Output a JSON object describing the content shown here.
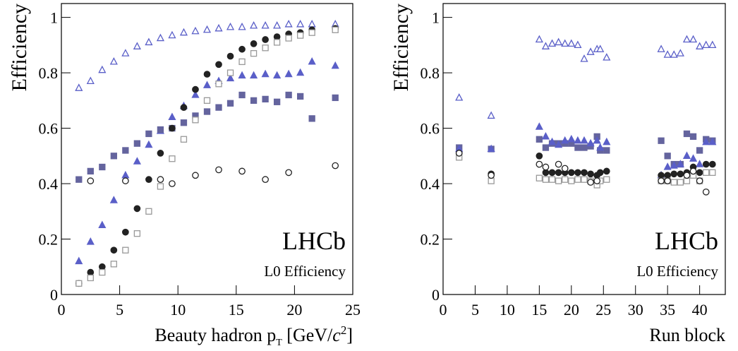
{
  "chart_data": [
    {
      "type": "scatter",
      "y_label": "Efficiency",
      "x_label": [
        "Beauty hadron p",
        "T",
        " [GeV/",
        "c",
        "2",
        "]"
      ],
      "annotations": [
        "LHCb",
        "L0 Efficiency"
      ],
      "xlim": [
        0,
        25
      ],
      "ylim": [
        0,
        1.05
      ],
      "xticks": [
        0,
        5,
        10,
        15,
        20,
        25
      ],
      "yticks": [
        0,
        0.2,
        0.4,
        0.6,
        0.8,
        1
      ],
      "x": [
        1.5,
        2.5,
        3.5,
        4.5,
        5.5,
        6.5,
        7.5,
        8.5,
        9.5,
        10.5,
        11.5,
        12.5,
        13.5,
        14.5,
        15.5,
        16.5,
        17.5,
        18.5,
        19.5,
        20.5,
        21.5,
        23.5
      ],
      "series": [
        {
          "marker": "triangle-open",
          "color": "#5a5fc8",
          "values": [
            0.745,
            0.77,
            0.81,
            0.84,
            0.87,
            0.895,
            0.91,
            0.925,
            0.935,
            0.945,
            0.95,
            0.955,
            0.96,
            0.965,
            0.965,
            0.97,
            0.97,
            0.97,
            0.975,
            0.975,
            0.975,
            0.975
          ]
        },
        {
          "marker": "triangle",
          "color": "#5a5fc8",
          "values": [
            0.12,
            0.19,
            0.25,
            0.34,
            0.43,
            0.48,
            0.54,
            0.59,
            0.64,
            0.68,
            0.72,
            0.755,
            0.77,
            0.78,
            0.79,
            0.79,
            0.795,
            0.79,
            0.795,
            0.8,
            0.84,
            0.825
          ]
        },
        {
          "marker": "square",
          "color": "#64649e",
          "values": [
            0.415,
            0.445,
            0.46,
            0.5,
            0.52,
            0.545,
            0.58,
            0.595,
            0.6,
            0.62,
            0.645,
            0.66,
            0.675,
            0.69,
            0.72,
            0.7,
            0.705,
            0.695,
            0.72,
            0.715,
            0.635,
            0.71
          ]
        },
        {
          "marker": "circle",
          "color": "#222222",
          "values": [
            0.04,
            0.08,
            0.1,
            0.16,
            0.225,
            0.31,
            0.415,
            0.51,
            0.6,
            0.675,
            0.74,
            0.795,
            0.83,
            0.86,
            0.885,
            0.905,
            0.92,
            0.93,
            0.94,
            0.945,
            0.955,
            0.96
          ]
        },
        {
          "marker": "square-open",
          "color": "#999999",
          "values": [
            0.04,
            0.06,
            0.08,
            0.11,
            0.16,
            0.22,
            0.3,
            0.39,
            0.49,
            0.56,
            0.63,
            0.7,
            0.76,
            0.8,
            0.84,
            0.87,
            0.89,
            0.91,
            0.925,
            0.935,
            0.945,
            0.955
          ]
        },
        {
          "marker": "circle-open",
          "color": "#222222",
          "values": [
            null,
            0.41,
            null,
            null,
            0.41,
            null,
            null,
            0.415,
            0.4,
            null,
            0.43,
            null,
            0.45,
            null,
            0.445,
            null,
            0.415,
            null,
            0.44,
            null,
            null,
            0.465
          ]
        }
      ]
    },
    {
      "type": "scatter",
      "y_label": "Efficiency",
      "x_label": [
        "Run block"
      ],
      "annotations": [
        "LHCb",
        "L0 Efficiency"
      ],
      "xlim": [
        0,
        44
      ],
      "ylim": [
        0,
        1.05
      ],
      "xticks": [
        0,
        5,
        10,
        15,
        20,
        25,
        30,
        35,
        40
      ],
      "yticks": [
        0,
        0.2,
        0.4,
        0.6,
        0.8,
        1
      ],
      "x": [
        2.5,
        7.5,
        15,
        16,
        17,
        18,
        19,
        20,
        21,
        22,
        23,
        24,
        24.5,
        25.5,
        34,
        35,
        36,
        37,
        38,
        39,
        40,
        41,
        42
      ],
      "series": [
        {
          "marker": "triangle-open",
          "color": "#5a5fc8",
          "values": [
            0.71,
            0.645,
            0.92,
            0.895,
            0.905,
            0.91,
            0.905,
            0.905,
            0.9,
            0.85,
            0.875,
            0.885,
            0.885,
            0.855,
            0.885,
            0.865,
            0.865,
            0.87,
            0.92,
            0.92,
            0.895,
            0.9,
            0.9
          ]
        },
        {
          "marker": "square",
          "color": "#64649e",
          "values": [
            0.53,
            0.525,
            0.56,
            0.53,
            0.545,
            0.545,
            0.545,
            0.545,
            0.53,
            0.53,
            0.535,
            0.57,
            0.52,
            0.52,
            0.555,
            0.5,
            0.47,
            0.47,
            0.58,
            0.57,
            0.52,
            0.56,
            0.555
          ]
        },
        {
          "marker": "triangle",
          "color": "#5a5fc8",
          "values": [
            0.525,
            0.525,
            0.605,
            0.57,
            0.55,
            0.54,
            0.555,
            0.56,
            0.555,
            0.555,
            0.545,
            0.555,
            0.53,
            0.55,
            0.43,
            0.46,
            0.465,
            0.47,
            0.5,
            0.49,
            0.47,
            0.55,
            0.55
          ]
        },
        {
          "marker": "circle",
          "color": "#222222",
          "values": [
            0.51,
            0.435,
            0.5,
            0.44,
            0.44,
            0.44,
            0.44,
            0.44,
            0.44,
            0.44,
            0.435,
            0.43,
            0.44,
            0.445,
            0.43,
            0.43,
            0.435,
            0.435,
            0.44,
            0.46,
            0.44,
            0.47,
            0.47
          ]
        },
        {
          "marker": "square-open",
          "color": "#999999",
          "values": [
            0.495,
            0.41,
            0.42,
            0.415,
            0.415,
            0.41,
            0.415,
            0.41,
            0.415,
            0.415,
            0.41,
            0.395,
            0.41,
            0.415,
            0.41,
            0.41,
            0.405,
            0.405,
            0.41,
            0.43,
            0.41,
            0.44,
            0.44
          ]
        },
        {
          "marker": "circle-open",
          "color": "#222222",
          "values": [
            0.51,
            0.43,
            0.47,
            0.46,
            null,
            0.47,
            0.455,
            null,
            null,
            null,
            0.405,
            0.41,
            null,
            null,
            0.41,
            0.41,
            null,
            null,
            0.43,
            0.445,
            0.41,
            0.37,
            null
          ]
        }
      ]
    }
  ]
}
